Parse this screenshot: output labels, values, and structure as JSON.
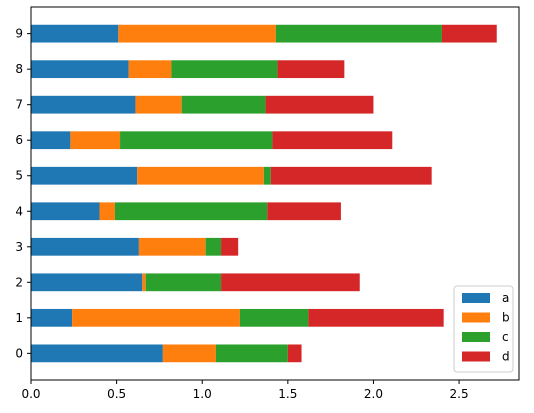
{
  "chart_data": {
    "type": "bar",
    "orientation": "horizontal",
    "stacked": true,
    "categories": [
      "0",
      "1",
      "2",
      "3",
      "4",
      "5",
      "6",
      "7",
      "8",
      "9"
    ],
    "series": [
      {
        "name": "a",
        "color": "#1f77b4",
        "values": [
          0.77,
          0.24,
          0.65,
          0.63,
          0.4,
          0.62,
          0.23,
          0.61,
          0.57,
          0.51
        ]
      },
      {
        "name": "b",
        "color": "#ff7f0e",
        "values": [
          0.31,
          0.98,
          0.02,
          0.39,
          0.09,
          0.74,
          0.29,
          0.27,
          0.25,
          0.92
        ]
      },
      {
        "name": "c",
        "color": "#2ca02c",
        "values": [
          0.42,
          0.4,
          0.44,
          0.09,
          0.89,
          0.04,
          0.89,
          0.49,
          0.62,
          0.97
        ]
      },
      {
        "name": "d",
        "color": "#d62728",
        "values": [
          0.08,
          0.79,
          0.81,
          0.1,
          0.43,
          0.94,
          0.7,
          0.63,
          0.39,
          0.32
        ]
      }
    ],
    "xticks": [
      "0.0",
      "0.5",
      "1.0",
      "1.5",
      "2.0",
      "2.5"
    ],
    "xtick_values": [
      0,
      0.5,
      1.0,
      1.5,
      2.0,
      2.5
    ],
    "xlim": [
      0,
      2.85
    ],
    "title": "",
    "xlabel": "",
    "ylabel": "",
    "grid": false,
    "legend_placement": "lower-right"
  }
}
